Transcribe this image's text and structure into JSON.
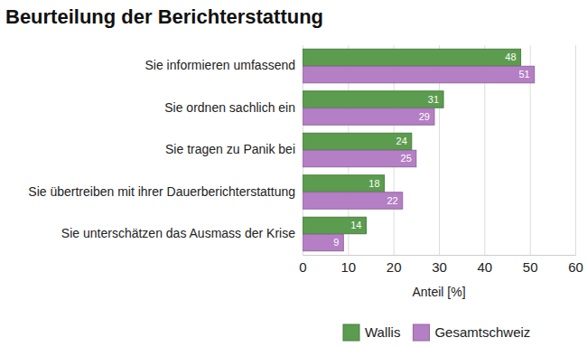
{
  "chart_data": {
    "type": "bar",
    "title": "Beurteilung der Berichterstattung",
    "orientation": "horizontal",
    "categories": [
      "Sie informieren umfassend",
      "Sie ordnen sachlich ein",
      "Sie tragen zu Panik bei",
      "Sie übertreiben mit ihrer Dauerberichterstattung",
      "Sie unterschätzen das Ausmass der Krise"
    ],
    "series": [
      {
        "name": "Wallis",
        "color": "#5b9c4f",
        "values": [
          48,
          31,
          24,
          18,
          14
        ]
      },
      {
        "name": "Gesamtschweiz",
        "color": "#b47fc4",
        "values": [
          51,
          29,
          25,
          22,
          9
        ]
      }
    ],
    "x_label": "Anteil [%]",
    "xlim": [
      0,
      60
    ],
    "xticks": [
      0,
      10,
      20,
      30,
      40,
      50,
      60
    ],
    "grid": true,
    "legend": "bottom",
    "data_labels": true
  }
}
